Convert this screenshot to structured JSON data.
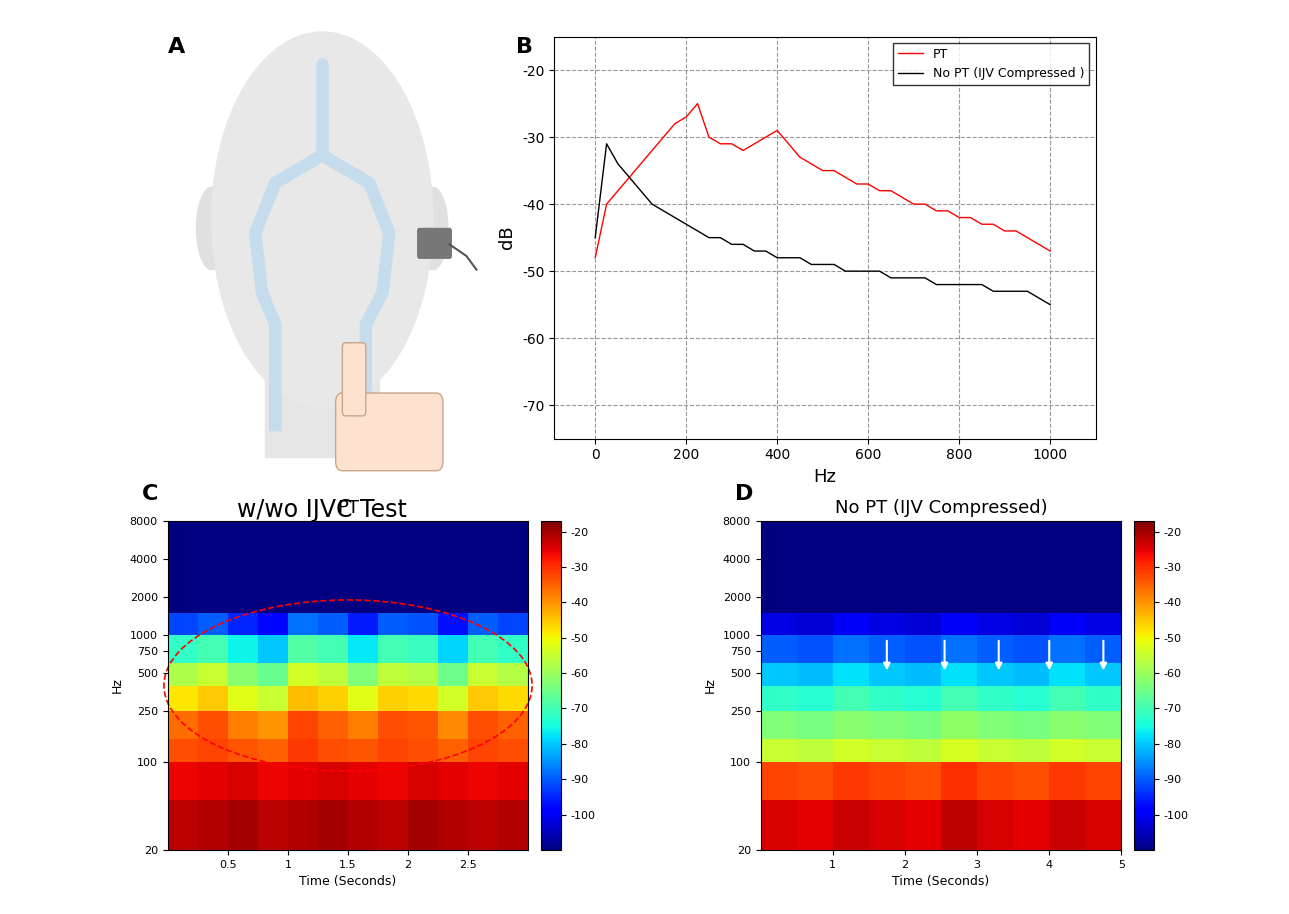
{
  "panels": {
    "A": {
      "label": "A",
      "caption": "w/wo IJVC Test"
    }
  },
  "chart_data": [
    {
      "panel": "B",
      "type": "line",
      "xlabel": "Hz",
      "ylabel": "dB",
      "x": [
        0,
        25,
        50,
        75,
        100,
        125,
        150,
        175,
        200,
        225,
        250,
        275,
        300,
        325,
        350,
        375,
        400,
        425,
        450,
        475,
        500,
        525,
        550,
        575,
        600,
        625,
        650,
        675,
        700,
        725,
        750,
        775,
        800,
        825,
        850,
        875,
        900,
        925,
        950,
        975,
        1000
      ],
      "series": [
        {
          "name": "PT",
          "color": "#ff0000",
          "values": [
            -48,
            -40,
            -38,
            -36,
            -34,
            -32,
            -30,
            -28,
            -27,
            -25,
            -30,
            -31,
            -31,
            -32,
            -31,
            -30,
            -29,
            -31,
            -33,
            -34,
            -35,
            -35,
            -36,
            -37,
            -37,
            -38,
            -38,
            -39,
            -40,
            -40,
            -41,
            -41,
            -42,
            -42,
            -43,
            -43,
            -44,
            -44,
            -45,
            -46,
            -47
          ]
        },
        {
          "name": "No PT (IJV Compressed )",
          "color": "#000000",
          "values": [
            -45,
            -31,
            -34,
            -36,
            -38,
            -40,
            -41,
            -42,
            -43,
            -44,
            -45,
            -45,
            -46,
            -46,
            -47,
            -47,
            -48,
            -48,
            -48,
            -49,
            -49,
            -49,
            -50,
            -50,
            -50,
            -50,
            -51,
            -51,
            -51,
            -51,
            -52,
            -52,
            -52,
            -52,
            -52,
            -53,
            -53,
            -53,
            -53,
            -54,
            -55
          ]
        }
      ],
      "xlim": [
        -90,
        1100
      ],
      "xticks": [
        0,
        200,
        400,
        600,
        800,
        1000
      ],
      "ylim": [
        -75,
        -15
      ],
      "yticks": [
        -70,
        -60,
        -50,
        -40,
        -30,
        -20
      ],
      "grid": true,
      "legend": "upper right"
    },
    {
      "panel": "C",
      "type": "heatmap",
      "title": "PT",
      "xlabel": "Time (Seconds)",
      "ylabel": "Hz",
      "log": "y",
      "x_edges": [
        0,
        0.25,
        0.5,
        0.75,
        1.0,
        1.25,
        1.5,
        1.75,
        2.0,
        2.25,
        2.5,
        2.75,
        3.0
      ],
      "y_edges": [
        20,
        50,
        100,
        150,
        250,
        400,
        600,
        1000,
        1500,
        8000
      ],
      "cells": [
        [
          -22,
          -21,
          -20,
          -22,
          -21,
          -20,
          -21,
          -22,
          -20,
          -21,
          -22,
          -21
        ],
        [
          -26,
          -25,
          -24,
          -26,
          -25,
          -24,
          -25,
          -26,
          -24,
          -25,
          -26,
          -25
        ],
        [
          -33,
          -32,
          -34,
          -35,
          -31,
          -33,
          -34,
          -32,
          -33,
          -35,
          -32,
          -33
        ],
        [
          -36,
          -33,
          -38,
          -40,
          -32,
          -35,
          -38,
          -33,
          -34,
          -39,
          -33,
          -35
        ],
        [
          -48,
          -45,
          -52,
          -55,
          -44,
          -46,
          -52,
          -46,
          -47,
          -54,
          -45,
          -47
        ],
        [
          -58,
          -55,
          -62,
          -66,
          -54,
          -56,
          -63,
          -56,
          -57,
          -65,
          -55,
          -57
        ],
        [
          -72,
          -70,
          -76,
          -80,
          -68,
          -70,
          -77,
          -70,
          -71,
          -79,
          -70,
          -72
        ],
        [
          -92,
          -90,
          -95,
          -98,
          -88,
          -90,
          -96,
          -90,
          -91,
          -97,
          -90,
          -92
        ],
        [
          -110,
          -110,
          -110,
          -110,
          -110,
          -110,
          -110,
          -110,
          -110,
          -110,
          -110,
          -110
        ]
      ],
      "xlim": [
        0,
        3
      ],
      "xticks": [
        0.5,
        1,
        1.5,
        2,
        2.5
      ],
      "ylim": [
        20,
        8000
      ],
      "yticks": [
        20,
        100,
        250,
        500,
        750,
        1000,
        2000,
        4000,
        8000
      ],
      "colorbar_range": [
        -110,
        -17
      ],
      "colorbar_ticks": [
        -100,
        -90,
        -80,
        -70,
        -60,
        -50,
        -40,
        -30,
        -20
      ]
    },
    {
      "panel": "D",
      "type": "heatmap",
      "title": "No PT (IJV Compressed)",
      "xlabel": "Time (Seconds)",
      "ylabel": "Hz",
      "log": "y",
      "x_edges": [
        0,
        0.5,
        1.0,
        1.5,
        2.0,
        2.5,
        3.0,
        3.5,
        4.0,
        4.5,
        5.0
      ],
      "y_edges": [
        20,
        50,
        100,
        150,
        250,
        400,
        600,
        1000,
        1500,
        8000
      ],
      "cells": [
        [
          -24,
          -25,
          -23,
          -24,
          -25,
          -22,
          -24,
          -25,
          -23,
          -24
        ],
        [
          -32,
          -33,
          -31,
          -32,
          -33,
          -30,
          -32,
          -33,
          -31,
          -32
        ],
        [
          -55,
          -56,
          -54,
          -55,
          -56,
          -53,
          -55,
          -56,
          -54,
          -55
        ],
        [
          -63,
          -64,
          -62,
          -63,
          -64,
          -61,
          -63,
          -64,
          -62,
          -63
        ],
        [
          -72,
          -73,
          -70,
          -72,
          -73,
          -70,
          -72,
          -73,
          -70,
          -72
        ],
        [
          -80,
          -81,
          -78,
          -80,
          -81,
          -78,
          -80,
          -81,
          -78,
          -80
        ],
        [
          -90,
          -91,
          -88,
          -90,
          -91,
          -88,
          -90,
          -91,
          -88,
          -90
        ],
        [
          -102,
          -103,
          -100,
          -102,
          -103,
          -100,
          -102,
          -103,
          -100,
          -102
        ],
        [
          -110,
          -110,
          -110,
          -110,
          -110,
          -110,
          -110,
          -110,
          -110,
          -110
        ]
      ],
      "xlim": [
        0,
        5
      ],
      "xticks": [
        1,
        2,
        3,
        4,
        5
      ],
      "ylim": [
        20,
        8000
      ],
      "yticks": [
        20,
        100,
        250,
        500,
        750,
        1000,
        2000,
        4000,
        8000
      ],
      "colorbar_range": [
        -110,
        -17
      ],
      "colorbar_ticks": [
        -100,
        -90,
        -80,
        -70,
        -60,
        -50,
        -40,
        -30,
        -20
      ],
      "arrow_x": [
        1.75,
        2.55,
        3.3,
        4.0,
        4.75
      ],
      "arrow_y": 500
    }
  ]
}
